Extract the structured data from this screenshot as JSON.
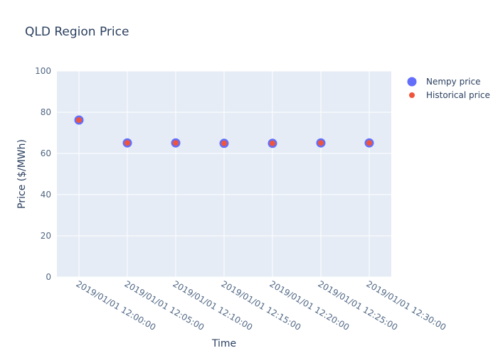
{
  "chart_data": {
    "type": "scatter",
    "title": "QLD Region Price",
    "xlabel": "Time",
    "ylabel": "Price ($/MWh)",
    "x": [
      "2019/01/01 12:00:00",
      "2019/01/01 12:05:00",
      "2019/01/01 12:10:00",
      "2019/01/01 12:15:00",
      "2019/01/01 12:20:00",
      "2019/01/01 12:25:00",
      "2019/01/01 12:30:00"
    ],
    "series": [
      {
        "name": "Nempy price",
        "values": [
          76.2,
          65.1,
          65.1,
          64.9,
          64.9,
          65.1,
          65.1
        ],
        "color": "#636efa"
      },
      {
        "name": "Historical price",
        "values": [
          76.2,
          65.1,
          65.1,
          64.9,
          64.9,
          65.1,
          65.1
        ],
        "color": "#ef553b"
      }
    ],
    "ylim": [
      0,
      100
    ],
    "yticks": [
      0,
      20,
      40,
      60,
      80,
      100
    ],
    "grid": true,
    "legend_position": "top-right",
    "plot_background": "#e5ecf6"
  }
}
